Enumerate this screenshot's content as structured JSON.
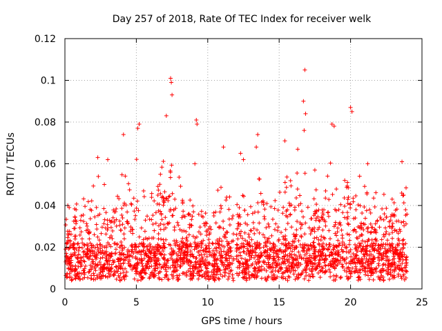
{
  "chart_data": {
    "type": "scatter",
    "title": "Day 257 of 2018, Rate Of TEC Index for receiver welk",
    "xlabel": "GPS time / hours",
    "ylabel": "ROTI / TECUs",
    "xlim": [
      0,
      25
    ],
    "ylim": [
      0,
      0.12
    ],
    "x_ticks": [
      0,
      5,
      10,
      15,
      20,
      25
    ],
    "x_tick_labels": [
      "0",
      "5",
      "10",
      "15",
      "20",
      "25"
    ],
    "y_ticks": [
      0,
      0.02,
      0.04,
      0.06,
      0.08,
      0.1,
      0.12
    ],
    "y_tick_labels": [
      "0",
      "0.02",
      "0.04",
      "0.06",
      "0.08",
      "0.1",
      "0.12"
    ],
    "grid": true,
    "marker": "+",
    "color": "#ff0000",
    "data_gap_hours": [
      11.8,
      12.0
    ],
    "envelope": {
      "x": [
        0,
        0.5,
        1,
        1.5,
        2,
        2.5,
        3,
        3.5,
        4,
        4.5,
        5,
        5.5,
        6,
        6.5,
        7,
        7.5,
        8,
        8.5,
        9,
        9.5,
        10,
        10.5,
        11,
        11.5,
        12,
        12.5,
        13,
        13.5,
        14,
        14.5,
        15,
        15.5,
        16,
        16.5,
        17,
        17.5,
        18,
        18.5,
        19,
        19.5,
        20,
        20.5,
        21,
        21.5,
        22,
        22.5,
        23,
        23.5,
        24
      ],
      "typical_max": [
        0.035,
        0.032,
        0.05,
        0.045,
        0.052,
        0.058,
        0.048,
        0.042,
        0.055,
        0.062,
        0.065,
        0.05,
        0.045,
        0.05,
        0.068,
        0.062,
        0.055,
        0.048,
        0.052,
        0.045,
        0.04,
        0.05,
        0.055,
        0.045,
        0.05,
        0.052,
        0.045,
        0.058,
        0.045,
        0.04,
        0.055,
        0.058,
        0.06,
        0.06,
        0.055,
        0.05,
        0.055,
        0.065,
        0.06,
        0.055,
        0.065,
        0.06,
        0.05,
        0.045,
        0.048,
        0.045,
        0.05,
        0.055,
        0.05
      ]
    },
    "notable_points": [
      {
        "x": 7.4,
        "y": 0.101
      },
      {
        "x": 7.45,
        "y": 0.099
      },
      {
        "x": 7.5,
        "y": 0.093
      },
      {
        "x": 16.8,
        "y": 0.105
      },
      {
        "x": 16.7,
        "y": 0.09
      },
      {
        "x": 16.85,
        "y": 0.084
      },
      {
        "x": 16.75,
        "y": 0.076
      },
      {
        "x": 20.0,
        "y": 0.087
      },
      {
        "x": 20.1,
        "y": 0.085
      },
      {
        "x": 7.1,
        "y": 0.083
      },
      {
        "x": 9.2,
        "y": 0.081
      },
      {
        "x": 9.25,
        "y": 0.079
      },
      {
        "x": 18.7,
        "y": 0.079
      },
      {
        "x": 18.85,
        "y": 0.078
      },
      {
        "x": 5.2,
        "y": 0.079
      },
      {
        "x": 5.1,
        "y": 0.077
      },
      {
        "x": 4.1,
        "y": 0.074
      },
      {
        "x": 13.5,
        "y": 0.074
      },
      {
        "x": 13.4,
        "y": 0.068
      },
      {
        "x": 15.4,
        "y": 0.071
      },
      {
        "x": 11.1,
        "y": 0.068
      },
      {
        "x": 16.3,
        "y": 0.067
      },
      {
        "x": 12.3,
        "y": 0.065
      },
      {
        "x": 12.5,
        "y": 0.062
      },
      {
        "x": 2.3,
        "y": 0.063
      },
      {
        "x": 3.0,
        "y": 0.062
      },
      {
        "x": 9.1,
        "y": 0.06
      },
      {
        "x": 21.2,
        "y": 0.06
      },
      {
        "x": 23.6,
        "y": 0.061
      },
      {
        "x": 17.5,
        "y": 0.057
      },
      {
        "x": 0.2,
        "y": 0.04
      },
      {
        "x": 0.3,
        "y": 0.039
      },
      {
        "x": 10.0,
        "y": 0.006
      },
      {
        "x": 10.5,
        "y": 0.007
      }
    ]
  }
}
